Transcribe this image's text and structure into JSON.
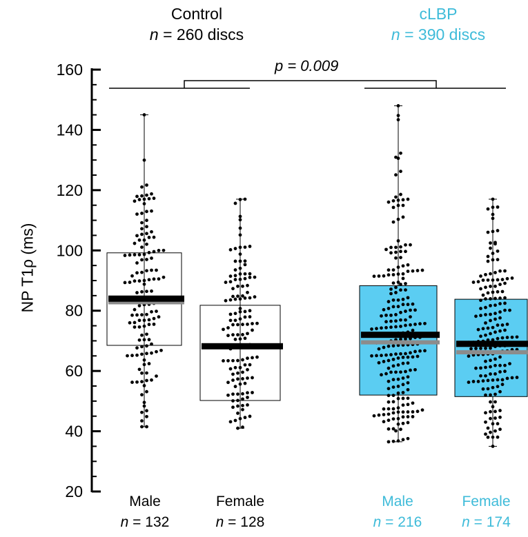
{
  "header": {
    "control": {
      "title": "Control",
      "n_prefix": "n",
      "n_text": " = 260 discs"
    },
    "clbp": {
      "title": "cLBP",
      "n_prefix": "n",
      "n_text": " = 390 discs"
    }
  },
  "p_value_label": "p = 0.009",
  "colors": {
    "black": "#000000",
    "accent": "#3ebbd9",
    "box_fill": "#5bcdf2",
    "median_gray": "#8c8c8c"
  },
  "chart_data": {
    "type": "box",
    "ylabel": "NP T1ρ (ms)",
    "ylim": [
      20,
      160
    ],
    "yticks": [
      20,
      40,
      60,
      80,
      100,
      120,
      140,
      160
    ],
    "minor_tick_step": 5,
    "categories": [
      "Male",
      "Female",
      "Male",
      "Female"
    ],
    "groups": [
      {
        "label": "Male",
        "n_prefix": "n",
        "n_text": " = 132",
        "cohort": "Control",
        "q1": 68.5,
        "q3": 99.2,
        "median": 84.0,
        "mean": 82.8,
        "min": 41.5,
        "max": 145.0,
        "filled": false
      },
      {
        "label": "Female",
        "n_prefix": "n",
        "n_text": " = 128",
        "cohort": "Control",
        "q1": 50.2,
        "q3": 81.8,
        "median": 68.2,
        "mean": 68.5,
        "min": 41.0,
        "max": 117.0,
        "filled": false
      },
      {
        "label": "Male",
        "n_prefix": "n",
        "n_text": " = 216",
        "cohort": "cLBP",
        "q1": 52.0,
        "q3": 88.3,
        "median": 72.0,
        "mean": 69.5,
        "min": 36.5,
        "max": 148.0,
        "filled": true
      },
      {
        "label": "Female",
        "n_prefix": "n",
        "n_text": " = 174",
        "cohort": "cLBP",
        "q1": 51.5,
        "q3": 83.8,
        "median": 69.0,
        "mean": 66.2,
        "min": 35.0,
        "max": 117.0,
        "filled": true
      }
    ]
  }
}
